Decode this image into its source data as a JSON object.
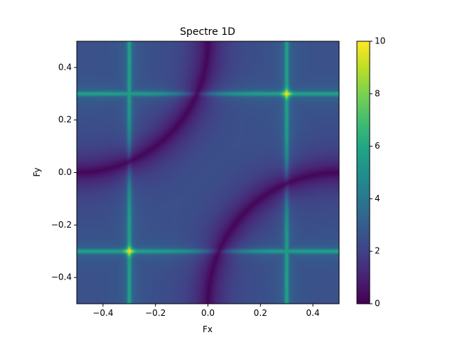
{
  "chart_data": {
    "type": "heatmap",
    "title": "Spectre 1D",
    "xlabel": "Fx",
    "ylabel": "Fy",
    "xlim": [
      -0.5,
      0.5
    ],
    "ylim": [
      -0.5,
      0.5
    ],
    "x_ticks": [
      -0.4,
      -0.2,
      0.0,
      0.2,
      0.4
    ],
    "y_ticks": [
      -0.4,
      -0.2,
      0.0,
      0.2,
      0.4
    ],
    "x_tick_labels": [
      "−0.4",
      "−0.2",
      "0.0",
      "0.2",
      "0.4"
    ],
    "y_tick_labels": [
      "−0.4",
      "−0.2",
      "0.0",
      "0.2",
      "0.4"
    ],
    "colormap": "viridis",
    "colorbar": {
      "range": [
        0,
        10
      ],
      "ticks": [
        0,
        2,
        4,
        6,
        8,
        10
      ],
      "tick_labels": [
        "0",
        "2",
        "4",
        "6",
        "8",
        "10"
      ]
    },
    "grid": false,
    "features": {
      "bright_lines_fx": [
        -0.3,
        0.3
      ],
      "bright_lines_fy": [
        -0.3,
        0.3
      ],
      "peaks": [
        {
          "fx": 0.3,
          "fy": 0.3,
          "value": 10
        },
        {
          "fx": -0.3,
          "fy": -0.3,
          "value": 10
        }
      ],
      "background_level": 2.5,
      "line_level": 6,
      "dark_arcs_min": 0
    }
  }
}
